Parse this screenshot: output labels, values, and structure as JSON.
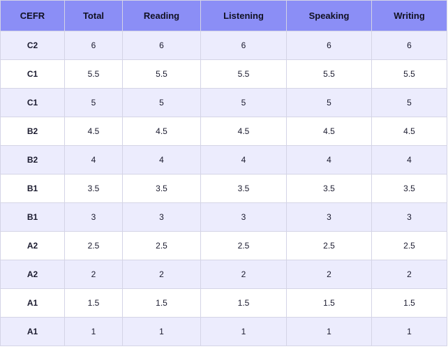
{
  "table": {
    "header": [
      "CEFR",
      "Total",
      "Reading",
      "Listening",
      "Speaking",
      "Writing"
    ],
    "rows": [
      [
        "C2",
        "6",
        "6",
        "6",
        "6",
        "6"
      ],
      [
        "C1",
        "5.5",
        "5.5",
        "5.5",
        "5.5",
        "5.5"
      ],
      [
        "C1",
        "5",
        "5",
        "5",
        "5",
        "5"
      ],
      [
        "B2",
        "4.5",
        "4.5",
        "4.5",
        "4.5",
        "4.5"
      ],
      [
        "B2",
        "4",
        "4",
        "4",
        "4",
        "4"
      ],
      [
        "B1",
        "3.5",
        "3.5",
        "3.5",
        "3.5",
        "3.5"
      ],
      [
        "B1",
        "3",
        "3",
        "3",
        "3",
        "3"
      ],
      [
        "A2",
        "2.5",
        "2.5",
        "2.5",
        "2.5",
        "2.5"
      ],
      [
        "A2",
        "2",
        "2",
        "2",
        "2",
        "2"
      ],
      [
        "A1",
        "1.5",
        "1.5",
        "1.5",
        "1.5",
        "1.5"
      ],
      [
        "A1",
        "1",
        "1",
        "1",
        "1",
        "1"
      ]
    ]
  }
}
